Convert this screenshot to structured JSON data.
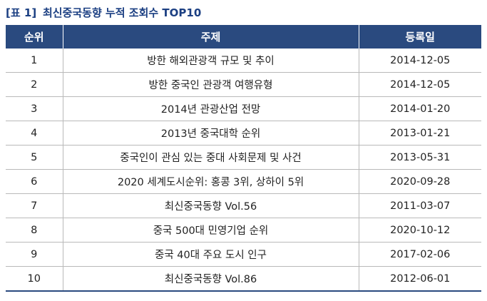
{
  "caption": {
    "tag": "[표 1]",
    "title": "최신중국동향 누적 조회수 TOP10"
  },
  "table": {
    "headers": [
      "순위",
      "주제",
      "등록일"
    ],
    "rows": [
      {
        "rank": "1",
        "title": "방한 해외관광객 규모 및 추이",
        "date": "2014-12-05"
      },
      {
        "rank": "2",
        "title": "방한 중국인 관광객 여행유형",
        "date": "2014-12-05"
      },
      {
        "rank": "3",
        "title": "2014년 관광산업 전망",
        "date": "2014-01-20"
      },
      {
        "rank": "4",
        "title": "2013년 중국대학 순위",
        "date": "2013-01-21"
      },
      {
        "rank": "5",
        "title": "중국인이 관심 있는 중대 사회문제 및 사건",
        "date": "2013-05-31"
      },
      {
        "rank": "6",
        "title": "2020 세계도시순위: 홍콩 3위, 상하이 5위",
        "date": "2020-09-28"
      },
      {
        "rank": "7",
        "title": "최신중국동향 Vol.56",
        "date": "2011-03-07"
      },
      {
        "rank": "8",
        "title": "중국 500대 민영기업 순위",
        "date": "2020-10-12"
      },
      {
        "rank": "9",
        "title": "중국 40대 주요 도시 인구",
        "date": "2017-02-06"
      },
      {
        "rank": "10",
        "title": "최신중국동향 Vol.86",
        "date": "2012-06-01"
      }
    ]
  },
  "colors": {
    "header_bg": "#2a4a7f",
    "caption_text": "#1b3f82",
    "grid_line": "#b9b9b9"
  }
}
